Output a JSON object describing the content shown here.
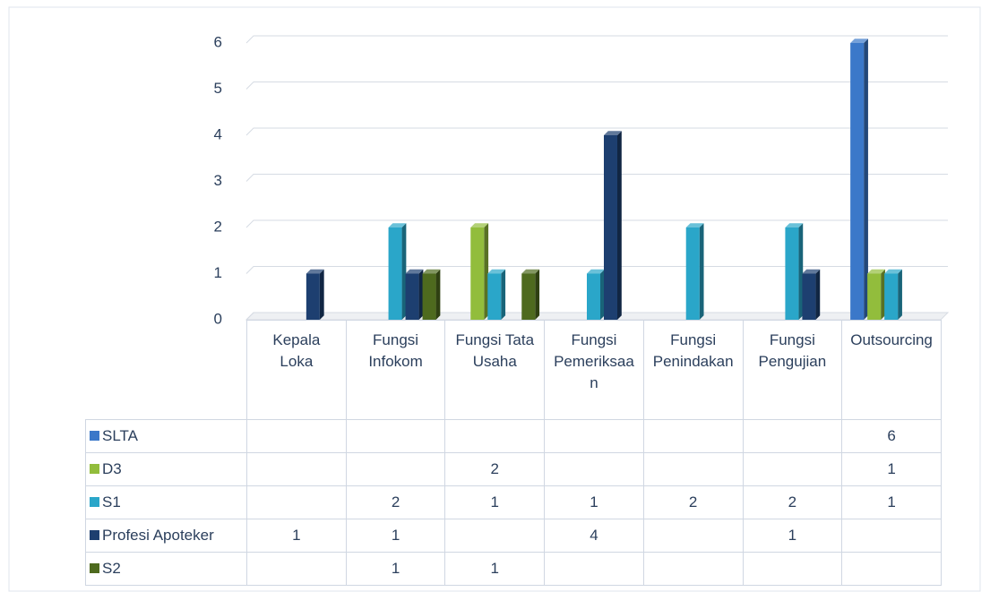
{
  "chart_data": {
    "type": "bar3d",
    "categories": [
      "Kepala Loka",
      "Fungsi Infokom",
      "Fungsi Tata Usaha",
      "Fungsi Pemeriksaan",
      "Fungsi Penindakan",
      "Fungsi Pengujian",
      "Outsourcing"
    ],
    "series": [
      {
        "name": "SLTA",
        "color": "#3b78c9",
        "values": [
          null,
          null,
          null,
          null,
          null,
          null,
          6
        ]
      },
      {
        "name": "D3",
        "color": "#92bd3c",
        "values": [
          null,
          null,
          2,
          null,
          null,
          null,
          1
        ]
      },
      {
        "name": "S1",
        "color": "#2aa6c9",
        "values": [
          null,
          2,
          1,
          1,
          2,
          2,
          1
        ]
      },
      {
        "name": "Profesi Apoteker",
        "color": "#1d3f70",
        "values": [
          1,
          1,
          null,
          4,
          null,
          1,
          null
        ]
      },
      {
        "name": "S2",
        "color": "#4e6a1e",
        "values": [
          null,
          1,
          1,
          null,
          null,
          null,
          null
        ]
      }
    ],
    "ylim": [
      0,
      6
    ],
    "yticks": [
      0,
      1,
      2,
      3,
      4,
      5,
      6
    ],
    "grid": true,
    "data_table": true
  }
}
